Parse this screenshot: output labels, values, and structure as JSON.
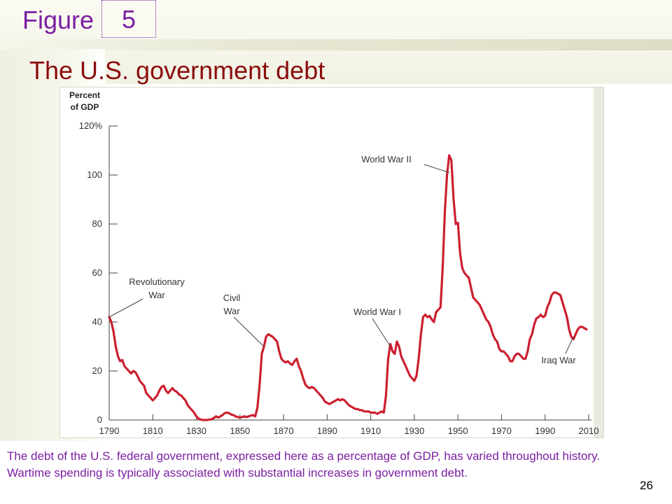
{
  "slide": {
    "figure_label": "Figure",
    "figure_number": "5",
    "title": "The U.S. government debt",
    "caption": "The debt of the U.S. federal government, expressed here as a percentage of GDP, has varied throughout history. Wartime spending is typically associated with substantial increases in government debt.",
    "page_number": "26"
  },
  "colors": {
    "accent": "#7b1fa2",
    "title": "#8b0d0d",
    "line": "#cc1f2f"
  },
  "chart_data": {
    "type": "line",
    "title": "",
    "ylabel": [
      "Percent",
      "of GDP"
    ],
    "xlabel": "",
    "xlim": [
      1790,
      2010
    ],
    "ylim": [
      0,
      120
    ],
    "x_ticks": [
      1790,
      1810,
      1830,
      1850,
      1870,
      1890,
      1910,
      1930,
      1950,
      1970,
      1990,
      2010
    ],
    "y_ticks": [
      0,
      20,
      40,
      60,
      80,
      100,
      120
    ],
    "y_tick_labels": [
      "0",
      "20",
      "40",
      "60",
      "80",
      "100",
      "120%"
    ],
    "grid": false,
    "series": [
      {
        "values": [
          [
            1790,
            42
          ],
          [
            1791,
            40
          ],
          [
            1792,
            36
          ],
          [
            1793,
            30
          ],
          [
            1794,
            26
          ],
          [
            1795,
            24
          ],
          [
            1796,
            24.5
          ],
          [
            1797,
            22
          ],
          [
            1798,
            21
          ],
          [
            1799,
            20
          ],
          [
            1800,
            19
          ],
          [
            1801,
            20
          ],
          [
            1802,
            19.5
          ],
          [
            1803,
            18
          ],
          [
            1804,
            16
          ],
          [
            1805,
            15
          ],
          [
            1806,
            14
          ],
          [
            1807,
            11
          ],
          [
            1808,
            10
          ],
          [
            1809,
            9
          ],
          [
            1810,
            8
          ],
          [
            1811,
            9
          ],
          [
            1812,
            10
          ],
          [
            1813,
            12
          ],
          [
            1814,
            13.5
          ],
          [
            1815,
            14
          ],
          [
            1816,
            12
          ],
          [
            1817,
            11
          ],
          [
            1818,
            12
          ],
          [
            1819,
            13
          ],
          [
            1820,
            12
          ],
          [
            1821,
            11.5
          ],
          [
            1822,
            10.5
          ],
          [
            1823,
            10
          ],
          [
            1824,
            9
          ],
          [
            1825,
            8
          ],
          [
            1826,
            6
          ],
          [
            1827,
            5
          ],
          [
            1828,
            4
          ],
          [
            1829,
            3
          ],
          [
            1830,
            1.5
          ],
          [
            1831,
            0.5
          ],
          [
            1832,
            0.2
          ],
          [
            1833,
            0
          ],
          [
            1834,
            0
          ],
          [
            1835,
            0
          ],
          [
            1836,
            0.2
          ],
          [
            1837,
            0.3
          ],
          [
            1838,
            0.8
          ],
          [
            1839,
            1.5
          ],
          [
            1840,
            1
          ],
          [
            1841,
            1.5
          ],
          [
            1842,
            2
          ],
          [
            1843,
            2.8
          ],
          [
            1844,
            3
          ],
          [
            1845,
            2.8
          ],
          [
            1846,
            2.2
          ],
          [
            1847,
            2
          ],
          [
            1848,
            1.5
          ],
          [
            1849,
            1.2
          ],
          [
            1850,
            1
          ],
          [
            1851,
            1.2
          ],
          [
            1852,
            1.5
          ],
          [
            1853,
            1.2
          ],
          [
            1854,
            1.5
          ],
          [
            1855,
            1.8
          ],
          [
            1856,
            2
          ],
          [
            1857,
            1.5
          ],
          [
            1858,
            5
          ],
          [
            1859,
            14
          ],
          [
            1860,
            27
          ],
          [
            1861,
            30
          ],
          [
            1862,
            34
          ],
          [
            1863,
            35
          ],
          [
            1864,
            34.5
          ],
          [
            1865,
            34
          ],
          [
            1866,
            33
          ],
          [
            1867,
            32
          ],
          [
            1868,
            28
          ],
          [
            1869,
            25
          ],
          [
            1870,
            24
          ],
          [
            1871,
            23.5
          ],
          [
            1872,
            24
          ],
          [
            1873,
            23
          ],
          [
            1874,
            22.5
          ],
          [
            1875,
            24
          ],
          [
            1876,
            25
          ],
          [
            1877,
            22
          ],
          [
            1878,
            20
          ],
          [
            1879,
            17
          ],
          [
            1880,
            14.5
          ],
          [
            1881,
            13.5
          ],
          [
            1882,
            13
          ],
          [
            1883,
            13.5
          ],
          [
            1884,
            13
          ],
          [
            1885,
            12
          ],
          [
            1886,
            11
          ],
          [
            1887,
            10
          ],
          [
            1888,
            9
          ],
          [
            1889,
            7.5
          ],
          [
            1890,
            7
          ],
          [
            1891,
            6.5
          ],
          [
            1892,
            7
          ],
          [
            1893,
            7.5
          ],
          [
            1894,
            8
          ],
          [
            1895,
            8.5
          ],
          [
            1896,
            8
          ],
          [
            1897,
            8.5
          ],
          [
            1898,
            8
          ],
          [
            1899,
            7
          ],
          [
            1900,
            6
          ],
          [
            1901,
            5.5
          ],
          [
            1902,
            5
          ],
          [
            1903,
            4.5
          ],
          [
            1904,
            4.5
          ],
          [
            1905,
            4
          ],
          [
            1906,
            4
          ],
          [
            1907,
            3.5
          ],
          [
            1908,
            3.5
          ],
          [
            1909,
            3.5
          ],
          [
            1910,
            3
          ],
          [
            1911,
            3
          ],
          [
            1912,
            3
          ],
          [
            1913,
            2.5
          ],
          [
            1914,
            3
          ],
          [
            1915,
            3.5
          ],
          [
            1916,
            3
          ],
          [
            1917,
            10
          ],
          [
            1918,
            25
          ],
          [
            1919,
            31
          ],
          [
            1920,
            28
          ],
          [
            1921,
            27
          ],
          [
            1922,
            32
          ],
          [
            1923,
            30
          ],
          [
            1924,
            26
          ],
          [
            1925,
            24
          ],
          [
            1926,
            22
          ],
          [
            1927,
            20
          ],
          [
            1928,
            18
          ],
          [
            1929,
            17
          ],
          [
            1930,
            16
          ],
          [
            1931,
            18
          ],
          [
            1932,
            25
          ],
          [
            1933,
            35
          ],
          [
            1934,
            42
          ],
          [
            1935,
            43
          ],
          [
            1936,
            42
          ],
          [
            1937,
            42.5
          ],
          [
            1938,
            41
          ],
          [
            1939,
            40
          ],
          [
            1940,
            44
          ],
          [
            1941,
            45
          ],
          [
            1942,
            46
          ],
          [
            1943,
            62
          ],
          [
            1944,
            85
          ],
          [
            1945,
            100
          ],
          [
            1946,
            108
          ],
          [
            1947,
            106
          ],
          [
            1948,
            90
          ],
          [
            1949,
            80
          ],
          [
            1950,
            80.5
          ],
          [
            1951,
            68
          ],
          [
            1952,
            62
          ],
          [
            1953,
            60
          ],
          [
            1954,
            59
          ],
          [
            1955,
            58
          ],
          [
            1956,
            54
          ],
          [
            1957,
            50
          ],
          [
            1958,
            49
          ],
          [
            1959,
            48
          ],
          [
            1960,
            47
          ],
          [
            1961,
            45
          ],
          [
            1962,
            43
          ],
          [
            1963,
            41
          ],
          [
            1964,
            40
          ],
          [
            1965,
            38
          ],
          [
            1966,
            35
          ],
          [
            1967,
            33
          ],
          [
            1968,
            32
          ],
          [
            1969,
            29
          ],
          [
            1970,
            28
          ],
          [
            1971,
            28
          ],
          [
            1972,
            27
          ],
          [
            1973,
            26
          ],
          [
            1974,
            24
          ],
          [
            1975,
            24
          ],
          [
            1976,
            26
          ],
          [
            1977,
            27
          ],
          [
            1978,
            27
          ],
          [
            1979,
            26
          ],
          [
            1980,
            25
          ],
          [
            1981,
            25
          ],
          [
            1982,
            28
          ],
          [
            1983,
            33
          ],
          [
            1984,
            35
          ],
          [
            1985,
            39
          ],
          [
            1986,
            41.5
          ],
          [
            1987,
            42
          ],
          [
            1988,
            43
          ],
          [
            1989,
            42
          ],
          [
            1990,
            42.5
          ],
          [
            1991,
            46
          ],
          [
            1992,
            48
          ],
          [
            1993,
            51
          ],
          [
            1994,
            52
          ],
          [
            1995,
            52
          ],
          [
            1996,
            51.5
          ],
          [
            1997,
            51
          ],
          [
            1998,
            48
          ],
          [
            1999,
            45
          ],
          [
            2000,
            42
          ],
          [
            2001,
            37
          ],
          [
            2002,
            34
          ],
          [
            2003,
            33
          ],
          [
            2004,
            35
          ],
          [
            2005,
            37
          ],
          [
            2006,
            38
          ],
          [
            2007,
            38
          ],
          [
            2008,
            37.5
          ],
          [
            2009,
            37
          ]
        ]
      }
    ],
    "annotations": [
      {
        "lines": [
          "Revolutionary",
          "War"
        ],
        "point": [
          1790,
          42
        ]
      },
      {
        "lines": [
          "Civil",
          "War"
        ],
        "point": [
          1861,
          30
        ]
      },
      {
        "lines": [
          "World War I"
        ],
        "point": [
          1919,
          30
        ]
      },
      {
        "lines": [
          "World War II"
        ],
        "point": [
          1946,
          101
        ]
      },
      {
        "lines": [
          "Iraq War"
        ],
        "point": [
          2003,
          34
        ]
      }
    ]
  }
}
